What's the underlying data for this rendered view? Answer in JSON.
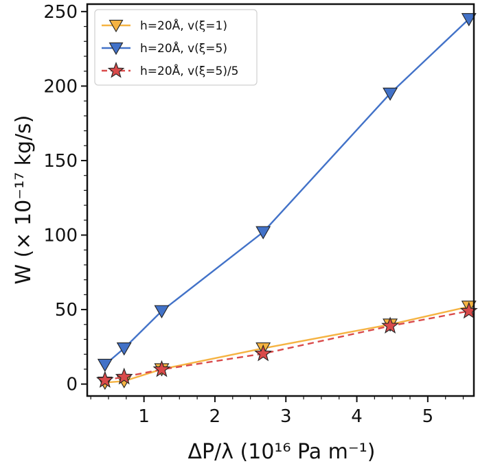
{
  "chart_data": {
    "type": "line",
    "xlabel": "ΔP/λ (10¹⁶ Pa m⁻¹)",
    "ylabel": "W (× 10⁻¹⁷ kg/s)",
    "xlim": [
      0.2,
      5.65
    ],
    "ylim": [
      -8,
      255
    ],
    "xticks": [
      1,
      2,
      3,
      4,
      5
    ],
    "yticks": [
      0,
      50,
      100,
      150,
      200,
      250
    ],
    "grid": false,
    "legend_position": "top-left",
    "series": [
      {
        "name": "h=20Å, v(ξ=1)",
        "color": "#f5b342",
        "line_style": "solid",
        "marker": "triangle-down",
        "x": [
          0.45,
          0.72,
          1.25,
          2.68,
          4.47,
          5.58
        ],
        "y": [
          1,
          2,
          10,
          24,
          40,
          52
        ]
      },
      {
        "name": "h=20Å, v(ξ=5)",
        "color": "#4272c8",
        "line_style": "solid",
        "marker": "triangle-down",
        "x": [
          0.45,
          0.72,
          1.25,
          2.68,
          4.47,
          5.58
        ],
        "y": [
          13,
          24,
          49,
          102,
          195,
          245
        ]
      },
      {
        "name": "h=20Å, v(ξ=5)/5",
        "color": "#d94a4a",
        "line_style": "dashed",
        "marker": "star",
        "x": [
          0.45,
          0.72,
          1.25,
          2.68,
          4.47,
          5.58
        ],
        "y": [
          2.6,
          4.8,
          9.8,
          20.4,
          39,
          49
        ]
      }
    ]
  }
}
